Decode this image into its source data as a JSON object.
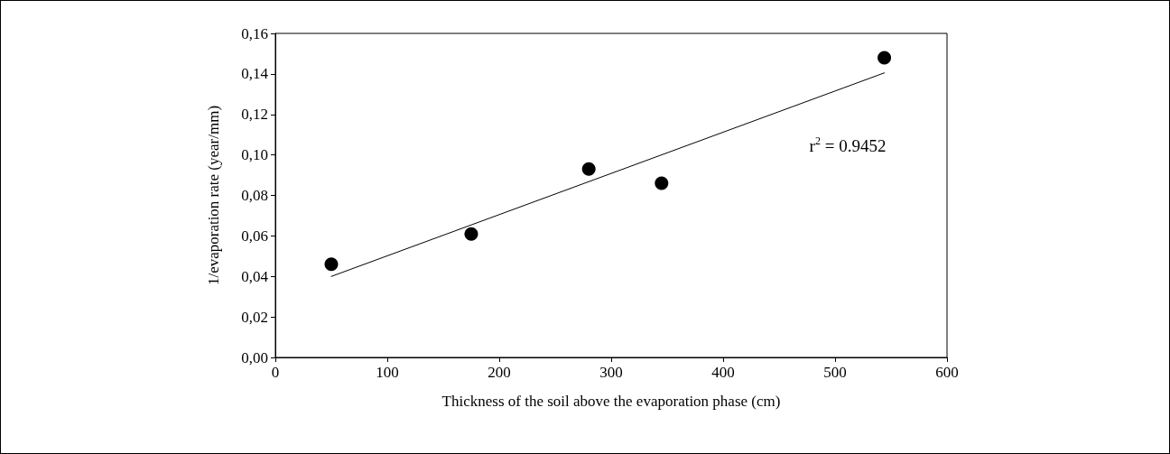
{
  "chart_data": {
    "type": "scatter",
    "xlabel": "Thickness of the soil above the evaporation phase (cm)",
    "ylabel": "1/evaporation rate (year/mm)",
    "series": [
      {
        "color": "#000000",
        "marker": "circle",
        "x": [
          50,
          175,
          280,
          345,
          544
        ],
        "values": [
          0.046,
          0.061,
          0.093,
          0.086,
          0.148
        ]
      },
      {
        "type": "line",
        "color": "#000000",
        "marker": "none",
        "line_style": "solid",
        "x": [
          50,
          544
        ],
        "values": [
          0.04,
          0.1405
        ]
      }
    ],
    "xlim": [
      0,
      600
    ],
    "xticks": [
      0,
      100,
      200,
      300,
      400,
      500,
      600
    ],
    "ylim": [
      0,
      0.16
    ],
    "yticks": [
      {
        "value": 0,
        "label": "0,00"
      },
      {
        "value": 0.02,
        "label": "0,02"
      },
      {
        "value": 0.04,
        "label": "0,04"
      },
      {
        "value": 0.06,
        "label": "0,06"
      },
      {
        "value": 0.08,
        "label": "0,08"
      },
      {
        "value": 0.1,
        "label": "0,10"
      },
      {
        "value": 0.12,
        "label": "0,12"
      },
      {
        "value": 0.14,
        "label": "0,14"
      },
      {
        "value": 0.16,
        "label": "0,16"
      }
    ],
    "annotations": [
      "r$^{2}$ = 0.9452"
    ],
    "grid": false
  }
}
